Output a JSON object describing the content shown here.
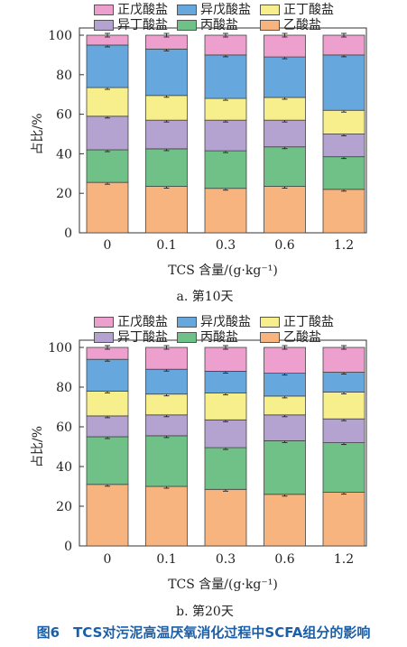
{
  "figure_caption": "图6　TCS对污泥高温厌氧消化过程中SCFA组分的影响",
  "colors": {
    "正戊酸盐": "#eda0cd",
    "异戊酸盐": "#66a8dd",
    "正丁酸盐": "#f7ee8c",
    "异丁酸盐": "#b4a2d0",
    "丙酸盐": "#6fc187",
    "乙酸盐": "#f7b47e"
  },
  "chart_data": [
    {
      "type": "bar",
      "stacked": true,
      "subcaption": "a. 第10天",
      "xlabel": "TCS 含量/(g·kg⁻¹)",
      "ylabel": "占比/%",
      "ylim": [
        0,
        100
      ],
      "yticks": [
        "0",
        "20",
        "40",
        "60",
        "80",
        "100"
      ],
      "categories": [
        "0",
        "0.1",
        "0.3",
        "0.6",
        "1.2"
      ],
      "legend": [
        [
          "正戊酸盐",
          "异戊酸盐",
          "正丁酸盐"
        ],
        [
          "异丁酸盐",
          "丙酸盐",
          "乙酸盐"
        ]
      ],
      "series": [
        {
          "name": "乙酸盐",
          "values": [
            25.5,
            23.5,
            22.5,
            23.5,
            22.0
          ]
        },
        {
          "name": "丙酸盐",
          "values": [
            16.5,
            19.0,
            19.0,
            20.0,
            16.5
          ]
        },
        {
          "name": "异丁酸盐",
          "values": [
            17.0,
            14.5,
            15.5,
            13.5,
            11.5
          ]
        },
        {
          "name": "正丁酸盐",
          "values": [
            14.5,
            12.5,
            11.0,
            11.5,
            12.0
          ]
        },
        {
          "name": "异戊酸盐",
          "values": [
            21.5,
            23.5,
            22.0,
            20.5,
            28.0
          ]
        },
        {
          "name": "正戊酸盐",
          "values": [
            5.0,
            7.0,
            10.0,
            11.0,
            10.0
          ]
        }
      ]
    },
    {
      "type": "bar",
      "stacked": true,
      "subcaption": "b. 第20天",
      "xlabel": "TCS 含量/(g·kg⁻¹)",
      "ylabel": "占比/%",
      "ylim": [
        0,
        100
      ],
      "yticks": [
        "0",
        "20",
        "40",
        "60",
        "80",
        "100"
      ],
      "categories": [
        "0",
        "0.1",
        "0.3",
        "0.6",
        "1.2"
      ],
      "legend": [
        [
          "正戊酸盐",
          "异戊酸盐",
          "正丁酸盐"
        ],
        [
          "异丁酸盐",
          "丙酸盐",
          "乙酸盐"
        ]
      ],
      "series": [
        {
          "name": "乙酸盐",
          "values": [
            31.0,
            30.0,
            28.5,
            26.0,
            27.0
          ]
        },
        {
          "name": "丙酸盐",
          "values": [
            24.0,
            25.5,
            21.0,
            27.0,
            25.0
          ]
        },
        {
          "name": "异丁酸盐",
          "values": [
            10.5,
            10.5,
            14.0,
            13.0,
            12.0
          ]
        },
        {
          "name": "正丁酸盐",
          "values": [
            12.5,
            10.5,
            13.5,
            9.5,
            13.5
          ]
        },
        {
          "name": "异戊酸盐",
          "values": [
            16.0,
            12.5,
            11.0,
            11.5,
            10.0
          ]
        },
        {
          "name": "正戊酸盐",
          "values": [
            6.0,
            11.0,
            12.0,
            13.0,
            12.5
          ]
        }
      ]
    }
  ]
}
